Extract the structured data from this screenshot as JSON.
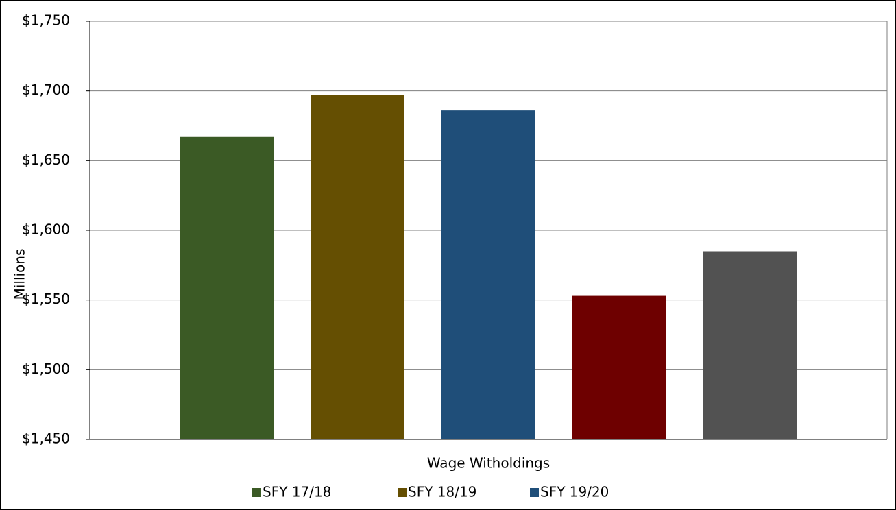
{
  "chart_data": {
    "type": "bar",
    "axis_label": "Millions",
    "categories": [
      "Wage Witholdings"
    ],
    "series": [
      {
        "name": "SFY 17/18",
        "color": "#3b5a25",
        "values": [
          1667
        ]
      },
      {
        "name": "SFY 18/19",
        "color": "#654f02",
        "values": [
          1697
        ]
      },
      {
        "name": "SFY 19/20",
        "color": "#1f4e79",
        "values": [
          1686
        ]
      },
      {
        "color": "#6e0000",
        "values": [
          1553
        ]
      },
      {
        "color": "#525252",
        "values": [
          1585
        ]
      }
    ],
    "ylim": [
      1450,
      1750
    ],
    "yticks": [
      {
        "value": 1450,
        "label": "$1,450"
      },
      {
        "value": 1500,
        "label": "$1,500"
      },
      {
        "value": 1550,
        "label": "$1,550"
      },
      {
        "value": 1600,
        "label": "$1,600"
      },
      {
        "value": 1650,
        "label": "$1,650"
      },
      {
        "value": 1700,
        "label": "$1,700"
      },
      {
        "value": 1750,
        "label": "$1,750"
      }
    ],
    "grid": true
  }
}
